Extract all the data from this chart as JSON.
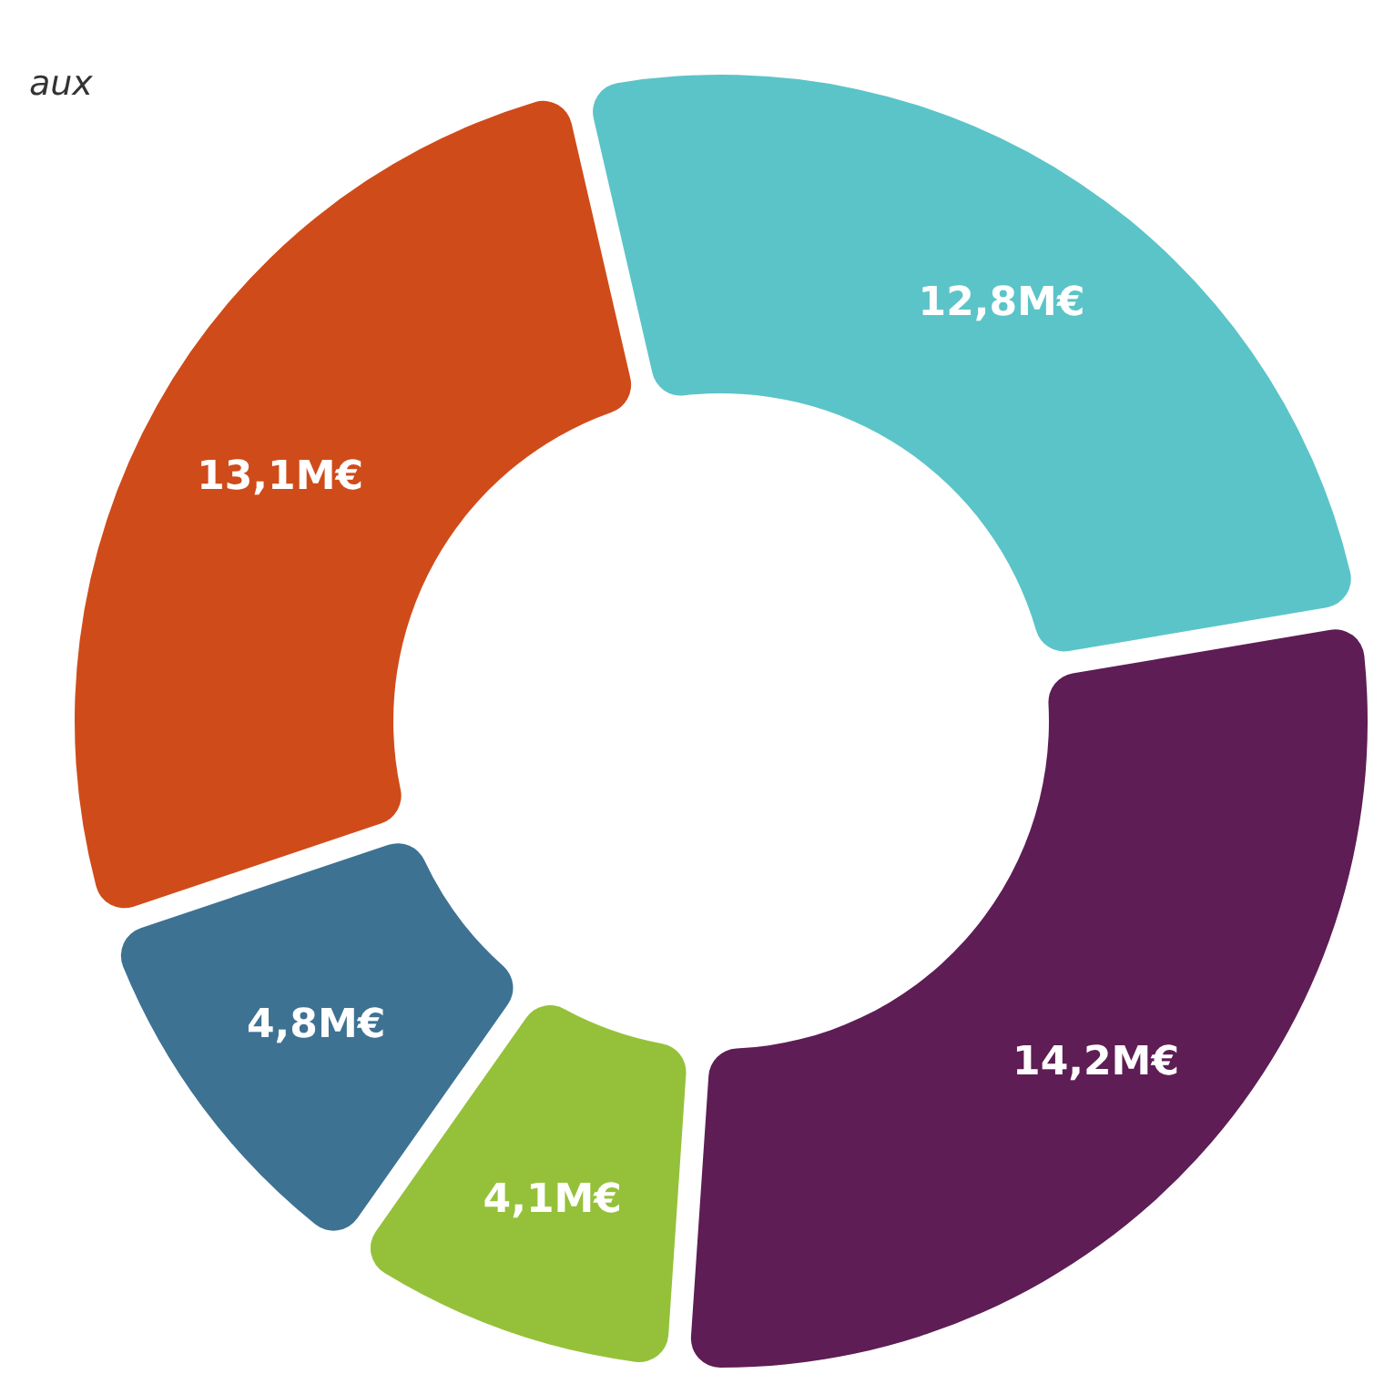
{
  "chart_data": {
    "type": "donut",
    "categories": [
      null,
      null,
      null,
      null,
      null
    ],
    "values": [
      12.8,
      14.2,
      4.1,
      4.8,
      13.1
    ],
    "colors": [
      "#5bc4c8",
      "#5e1d55",
      "#95c13a",
      "#3d7293",
      "#d04b1a"
    ],
    "value_labels": [
      "12,8M€",
      "14,2M€",
      "4,1M€",
      "4,8M€",
      "13,1M€"
    ],
    "annotations": [
      "aux"
    ]
  }
}
